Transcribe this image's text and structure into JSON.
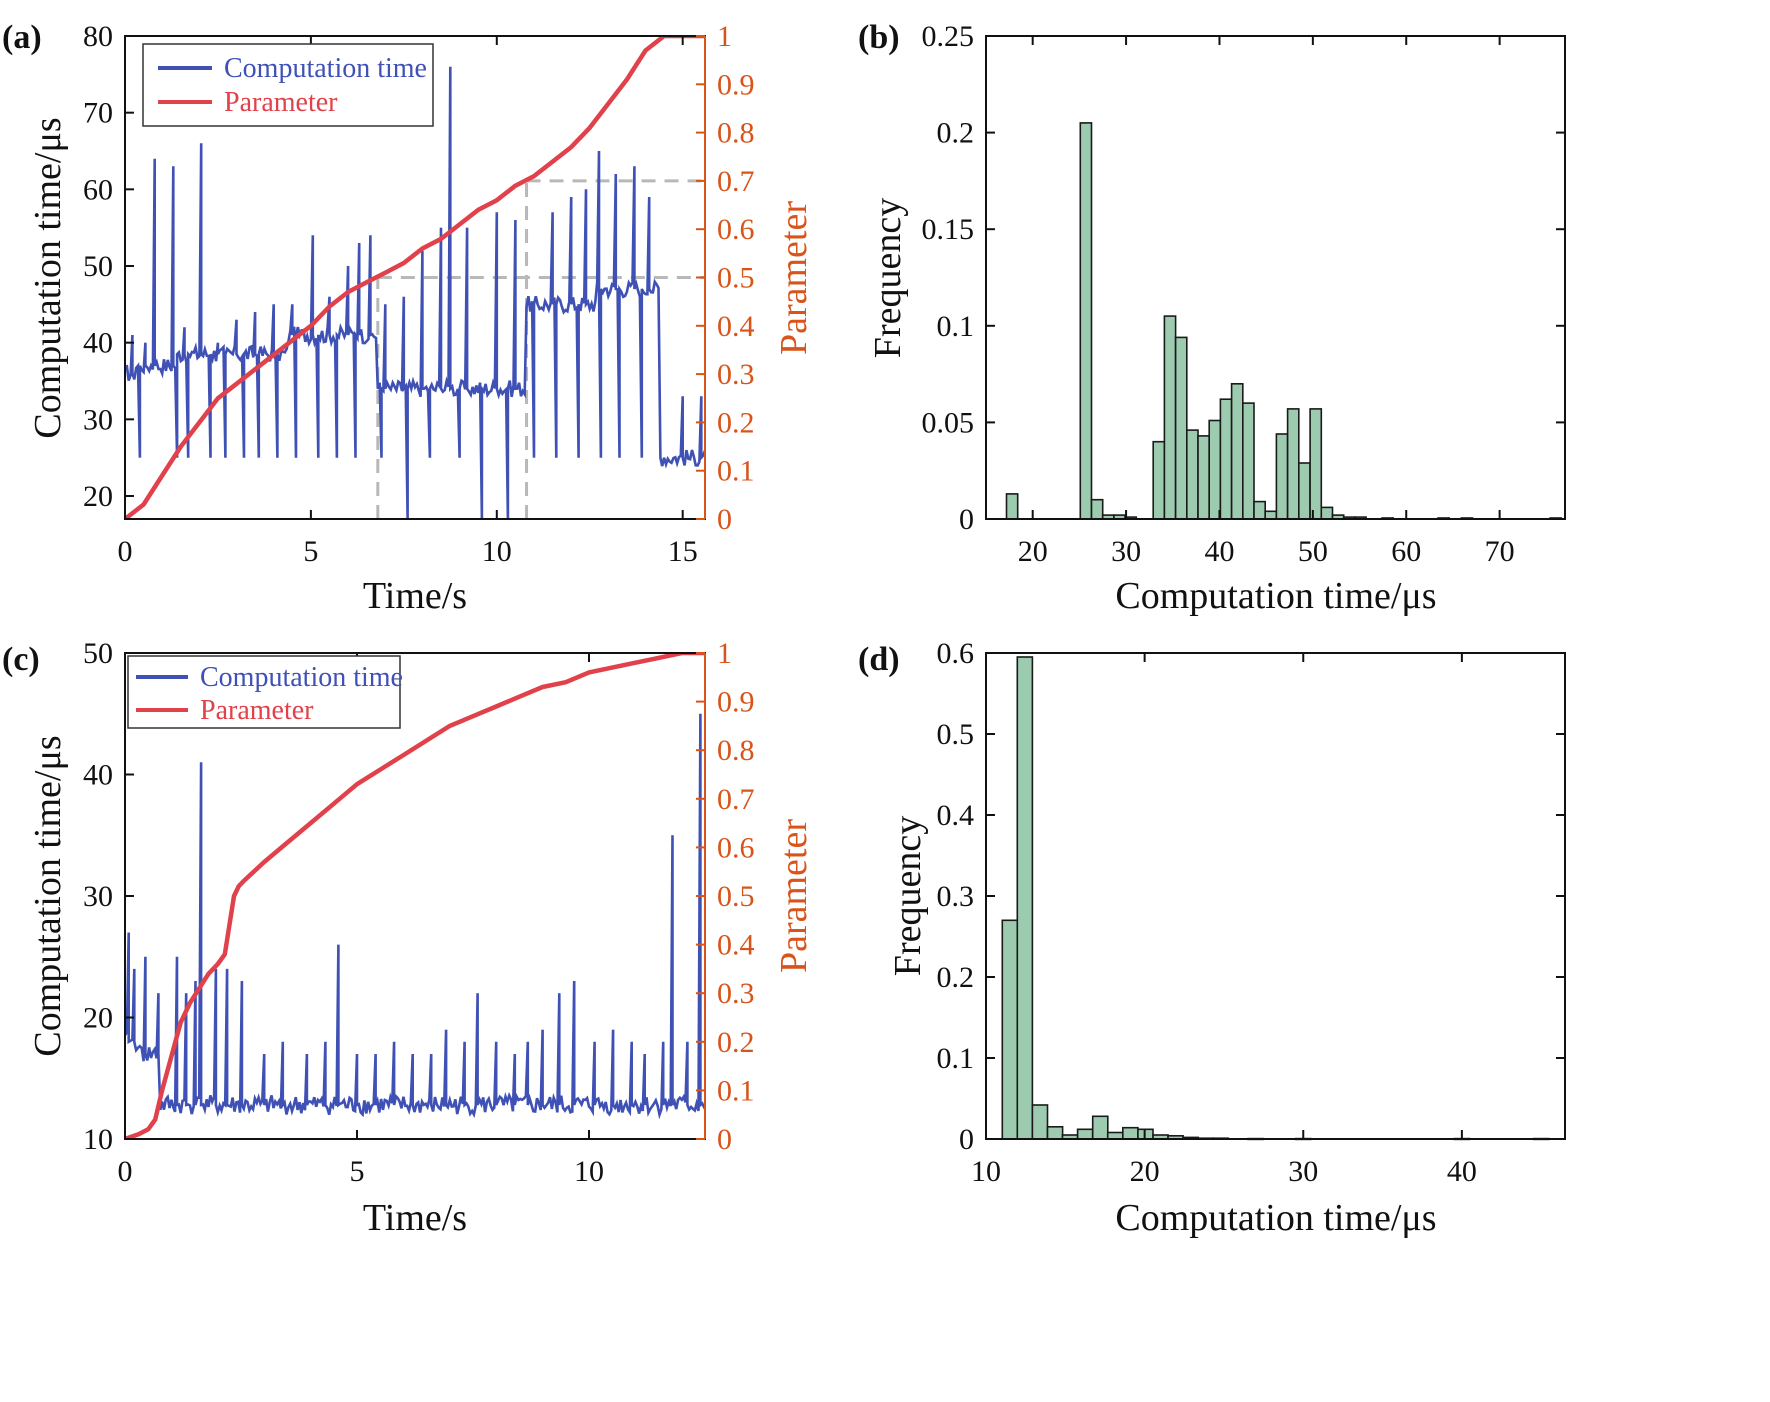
{
  "colors": {
    "computation": "#3F51B5",
    "parameter": "#E0414B",
    "right_axis": "#D9541A",
    "hist_fill": "#9CCBB0",
    "hist_edge": "#1a1a1a",
    "guide": "#B8B8B8"
  },
  "chart_data": [
    {
      "panel": "(a)",
      "type": "line",
      "xlabel": "Time/s",
      "ylabel": "Computation time/μs",
      "y2label": "Parameter",
      "xlim": [
        0,
        15.6
      ],
      "ylim": [
        17,
        80
      ],
      "y2lim": [
        0,
        1
      ],
      "xticks": [
        0,
        5,
        10,
        15
      ],
      "yticks": [
        20,
        30,
        40,
        50,
        60,
        70,
        80
      ],
      "y2ticks": [
        0,
        0.1,
        0.2,
        0.3,
        0.4,
        0.5,
        0.6,
        0.7,
        0.8,
        0.9,
        1
      ],
      "y2ticklabels": [
        "0",
        "0.1",
        "0.2",
        "0.3",
        "0.4",
        "0.5",
        "0.6",
        "0.7",
        "0.8",
        "0.9",
        "1"
      ],
      "legend": [
        "Computation time",
        "Parameter"
      ],
      "legend_position": "top-left",
      "computation_segments": [
        {
          "x": [
            0,
            0.3
          ],
          "base": 36
        },
        {
          "x": [
            0.3,
            1.4
          ],
          "base": 37
        },
        {
          "x": [
            1.4,
            4.4
          ],
          "base": 38.5
        },
        {
          "x": [
            4.4,
            6.8
          ],
          "base": 41
        },
        {
          "x": [
            6.8,
            10.8
          ],
          "base": 34
        },
        {
          "x": [
            10.8,
            12.7
          ],
          "base": 45
        },
        {
          "x": [
            12.7,
            14.4
          ],
          "base": 47
        },
        {
          "x": [
            14.4,
            15.6
          ],
          "base": 25
        }
      ],
      "computation_spikes": [
        {
          "t": 0.2,
          "v": 41
        },
        {
          "t": 0.55,
          "v": 40
        },
        {
          "t": 0.8,
          "v": 64
        },
        {
          "t": 1.3,
          "v": 63
        },
        {
          "t": 1.6,
          "v": 42
        },
        {
          "t": 2.05,
          "v": 66
        },
        {
          "t": 2.5,
          "v": 40
        },
        {
          "t": 3.0,
          "v": 43
        },
        {
          "t": 3.5,
          "v": 44
        },
        {
          "t": 4.0,
          "v": 45
        },
        {
          "t": 4.5,
          "v": 45
        },
        {
          "t": 5.05,
          "v": 54
        },
        {
          "t": 5.5,
          "v": 46
        },
        {
          "t": 6.0,
          "v": 50
        },
        {
          "t": 6.3,
          "v": 53
        },
        {
          "t": 6.6,
          "v": 54
        },
        {
          "t": 7.0,
          "v": 45
        },
        {
          "t": 7.5,
          "v": 46
        },
        {
          "t": 8.0,
          "v": 52
        },
        {
          "t": 8.5,
          "v": 55
        },
        {
          "t": 8.75,
          "v": 76
        },
        {
          "t": 9.2,
          "v": 55
        },
        {
          "t": 9.6,
          "v": 56
        },
        {
          "t": 10.0,
          "v": 57
        },
        {
          "t": 10.5,
          "v": 56
        },
        {
          "t": 11.0,
          "v": 56
        },
        {
          "t": 11.5,
          "v": 57
        },
        {
          "t": 12.0,
          "v": 59
        },
        {
          "t": 12.4,
          "v": 60
        },
        {
          "t": 12.75,
          "v": 65
        },
        {
          "t": 13.2,
          "v": 62
        },
        {
          "t": 13.7,
          "v": 63
        },
        {
          "t": 14.1,
          "v": 59
        },
        {
          "t": 14.5,
          "v": 50
        },
        {
          "t": 15.0,
          "v": 33
        },
        {
          "t": 15.5,
          "v": 33
        }
      ],
      "computation_dips": [
        {
          "t": 0.4,
          "v": 25
        },
        {
          "t": 1.4,
          "v": 25
        },
        {
          "t": 1.7,
          "v": 25
        },
        {
          "t": 2.3,
          "v": 25
        },
        {
          "t": 2.7,
          "v": 25
        },
        {
          "t": 3.2,
          "v": 25
        },
        {
          "t": 3.6,
          "v": 25
        },
        {
          "t": 4.1,
          "v": 25
        },
        {
          "t": 4.6,
          "v": 25
        },
        {
          "t": 5.2,
          "v": 25
        },
        {
          "t": 5.7,
          "v": 25
        },
        {
          "t": 6.2,
          "v": 25
        },
        {
          "t": 6.9,
          "v": 25
        },
        {
          "t": 7.6,
          "v": 17
        },
        {
          "t": 8.2,
          "v": 25
        },
        {
          "t": 9.0,
          "v": 25
        },
        {
          "t": 9.6,
          "v": 17
        },
        {
          "t": 10.3,
          "v": 17
        },
        {
          "t": 11.0,
          "v": 25
        },
        {
          "t": 11.6,
          "v": 25
        },
        {
          "t": 12.2,
          "v": 25
        },
        {
          "t": 12.8,
          "v": 25
        },
        {
          "t": 13.3,
          "v": 25
        },
        {
          "t": 13.9,
          "v": 25
        },
        {
          "t": 14.5,
          "v": 25
        }
      ],
      "parameter": {
        "x": [
          0,
          0.5,
          1.0,
          1.5,
          2.0,
          2.5,
          3.0,
          3.5,
          4.0,
          4.5,
          5.0,
          5.5,
          6.0,
          6.5,
          7.0,
          7.5,
          8.0,
          8.5,
          9.0,
          9.5,
          10.0,
          10.5,
          11.0,
          11.5,
          12.0,
          12.5,
          13.0,
          13.5,
          14.0,
          14.5,
          15.0,
          15.6
        ],
        "y": [
          0,
          0.03,
          0.09,
          0.15,
          0.2,
          0.25,
          0.28,
          0.31,
          0.34,
          0.37,
          0.4,
          0.44,
          0.47,
          0.49,
          0.51,
          0.53,
          0.56,
          0.58,
          0.61,
          0.64,
          0.66,
          0.69,
          0.71,
          0.74,
          0.77,
          0.81,
          0.86,
          0.91,
          0.97,
          1.0,
          1.0,
          1.0
        ]
      },
      "guides": [
        {
          "x": [
            6.8,
            6.8
          ],
          "y2": [
            0,
            0.5
          ]
        },
        {
          "x": [
            6.8,
            15.6
          ],
          "y2": [
            0.5,
            0.5
          ]
        },
        {
          "x": [
            10.8,
            10.8
          ],
          "y2": [
            0,
            0.7
          ]
        },
        {
          "x": [
            10.8,
            15.6
          ],
          "y2": [
            0.7,
            0.7
          ]
        }
      ]
    },
    {
      "panel": "(b)",
      "type": "bar",
      "xlabel": "Computation time/μs",
      "ylabel": "Frequency",
      "xlim": [
        15,
        77
      ],
      "ylim": [
        0,
        0.25
      ],
      "xticks": [
        20,
        30,
        40,
        50,
        60,
        70
      ],
      "yticks": [
        0,
        0.05,
        0.1,
        0.15,
        0.2,
        0.25
      ],
      "yticklabels": [
        "0",
        "0.05",
        "0.1",
        "0.15",
        "0.2",
        "0.25"
      ],
      "bin_width": 1.2,
      "bins": [
        {
          "x": 17.8,
          "f": 0.013
        },
        {
          "x": 25.7,
          "f": 0.205
        },
        {
          "x": 26.9,
          "f": 0.01
        },
        {
          "x": 28.1,
          "f": 0.002
        },
        {
          "x": 29.3,
          "f": 0.002
        },
        {
          "x": 30.5,
          "f": 0.001
        },
        {
          "x": 33.5,
          "f": 0.04
        },
        {
          "x": 34.7,
          "f": 0.105
        },
        {
          "x": 35.9,
          "f": 0.094
        },
        {
          "x": 37.1,
          "f": 0.046
        },
        {
          "x": 38.3,
          "f": 0.043
        },
        {
          "x": 39.5,
          "f": 0.051
        },
        {
          "x": 40.7,
          "f": 0.062
        },
        {
          "x": 41.9,
          "f": 0.07
        },
        {
          "x": 43.1,
          "f": 0.06
        },
        {
          "x": 44.3,
          "f": 0.009
        },
        {
          "x": 45.5,
          "f": 0.004
        },
        {
          "x": 46.7,
          "f": 0.044
        },
        {
          "x": 47.9,
          "f": 0.057
        },
        {
          "x": 49.1,
          "f": 0.029
        },
        {
          "x": 50.3,
          "f": 0.057
        },
        {
          "x": 51.5,
          "f": 0.006
        },
        {
          "x": 52.7,
          "f": 0.002
        },
        {
          "x": 53.9,
          "f": 0.001
        },
        {
          "x": 55.1,
          "f": 0.001
        },
        {
          "x": 58.0,
          "f": 0.0005
        },
        {
          "x": 64.0,
          "f": 0.0005
        },
        {
          "x": 66.5,
          "f": 0.0005
        },
        {
          "x": 76.0,
          "f": 0.0005
        }
      ]
    },
    {
      "panel": "(c)",
      "type": "line",
      "xlabel": "Time/s",
      "ylabel": "Computation time/μs",
      "y2label": "Parameter",
      "xlim": [
        0,
        12.5
      ],
      "ylim": [
        10,
        50
      ],
      "y2lim": [
        0,
        1
      ],
      "xticks": [
        0,
        5,
        10
      ],
      "yticks": [
        10,
        20,
        30,
        40,
        50
      ],
      "y2ticks": [
        0,
        0.1,
        0.2,
        0.3,
        0.4,
        0.5,
        0.6,
        0.7,
        0.8,
        0.9,
        1
      ],
      "y2ticklabels": [
        "0",
        "0.1",
        "0.2",
        "0.3",
        "0.4",
        "0.5",
        "0.6",
        "0.7",
        "0.8",
        "0.9",
        "1"
      ],
      "legend": [
        "Computation time",
        "Parameter"
      ],
      "legend_position": "top-left",
      "computation_base": [
        {
          "x": [
            0,
            0.3
          ],
          "base": 18
        },
        {
          "x": [
            0.3,
            0.75
          ],
          "base": 17
        },
        {
          "x": [
            0.75,
            12.5
          ],
          "base": 12.8
        }
      ],
      "computation_spikes": [
        {
          "t": 0.08,
          "v": 27
        },
        {
          "t": 0.2,
          "v": 24
        },
        {
          "t": 0.45,
          "v": 25
        },
        {
          "t": 0.7,
          "v": 22
        },
        {
          "t": 1.1,
          "v": 25
        },
        {
          "t": 1.3,
          "v": 22
        },
        {
          "t": 1.5,
          "v": 23
        },
        {
          "t": 1.65,
          "v": 41
        },
        {
          "t": 1.95,
          "v": 24
        },
        {
          "t": 2.2,
          "v": 24
        },
        {
          "t": 2.5,
          "v": 23
        },
        {
          "t": 3.0,
          "v": 17
        },
        {
          "t": 3.4,
          "v": 18
        },
        {
          "t": 3.9,
          "v": 17
        },
        {
          "t": 4.3,
          "v": 18
        },
        {
          "t": 4.6,
          "v": 26
        },
        {
          "t": 5.0,
          "v": 17
        },
        {
          "t": 5.4,
          "v": 17
        },
        {
          "t": 5.8,
          "v": 18
        },
        {
          "t": 6.2,
          "v": 17
        },
        {
          "t": 6.6,
          "v": 17
        },
        {
          "t": 6.9,
          "v": 19
        },
        {
          "t": 7.3,
          "v": 18
        },
        {
          "t": 7.6,
          "v": 22
        },
        {
          "t": 8.0,
          "v": 18
        },
        {
          "t": 8.4,
          "v": 17
        },
        {
          "t": 8.7,
          "v": 18
        },
        {
          "t": 9.0,
          "v": 19
        },
        {
          "t": 9.35,
          "v": 22
        },
        {
          "t": 9.7,
          "v": 23
        },
        {
          "t": 10.1,
          "v": 18
        },
        {
          "t": 10.5,
          "v": 19
        },
        {
          "t": 10.9,
          "v": 18
        },
        {
          "t": 11.2,
          "v": 17
        },
        {
          "t": 11.6,
          "v": 18
        },
        {
          "t": 11.8,
          "v": 35
        },
        {
          "t": 12.1,
          "v": 18
        },
        {
          "t": 12.4,
          "v": 45
        }
      ],
      "parameter": {
        "x": [
          0,
          0.3,
          0.5,
          0.65,
          0.8,
          1.0,
          1.2,
          1.4,
          1.6,
          1.8,
          2.0,
          2.15,
          2.25,
          2.35,
          2.45,
          2.55,
          3.0,
          3.5,
          4.0,
          4.5,
          5.0,
          5.5,
          6.0,
          6.5,
          7.0,
          7.5,
          8.0,
          8.5,
          9.0,
          9.5,
          10.0,
          10.5,
          11.0,
          11.5,
          12.0,
          12.5
        ],
        "y": [
          0,
          0.01,
          0.02,
          0.04,
          0.1,
          0.17,
          0.24,
          0.28,
          0.31,
          0.34,
          0.36,
          0.38,
          0.44,
          0.5,
          0.52,
          0.53,
          0.57,
          0.61,
          0.65,
          0.69,
          0.73,
          0.76,
          0.79,
          0.82,
          0.85,
          0.87,
          0.89,
          0.91,
          0.93,
          0.94,
          0.96,
          0.97,
          0.98,
          0.99,
          1.0,
          1.0
        ]
      }
    },
    {
      "panel": "(d)",
      "type": "bar",
      "xlabel": "Computation time/μs",
      "ylabel": "Frequency",
      "xlim": [
        10,
        46.5
      ],
      "ylim": [
        0,
        0.6
      ],
      "xticks": [
        10,
        20,
        30,
        40
      ],
      "yticks": [
        0,
        0.1,
        0.2,
        0.3,
        0.4,
        0.5,
        0.6
      ],
      "yticklabels": [
        "0",
        "0.1",
        "0.2",
        "0.3",
        "0.4",
        "0.5",
        "0.6"
      ],
      "bin_width": 0.95,
      "bins": [
        {
          "x": 11.5,
          "f": 0.27
        },
        {
          "x": 12.45,
          "f": 0.595
        },
        {
          "x": 13.4,
          "f": 0.042
        },
        {
          "x": 14.35,
          "f": 0.015
        },
        {
          "x": 15.3,
          "f": 0.005
        },
        {
          "x": 16.25,
          "f": 0.012
        },
        {
          "x": 17.2,
          "f": 0.028
        },
        {
          "x": 18.15,
          "f": 0.008
        },
        {
          "x": 19.1,
          "f": 0.014
        },
        {
          "x": 20.05,
          "f": 0.012
        },
        {
          "x": 21.0,
          "f": 0.005
        },
        {
          "x": 21.95,
          "f": 0.004
        },
        {
          "x": 22.9,
          "f": 0.002
        },
        {
          "x": 23.85,
          "f": 0.001
        },
        {
          "x": 24.8,
          "f": 0.001
        },
        {
          "x": 27.0,
          "f": 0.0005
        },
        {
          "x": 30.0,
          "f": 0.0005
        },
        {
          "x": 40.0,
          "f": 0.0005
        },
        {
          "x": 45.0,
          "f": 0.0005
        }
      ]
    }
  ]
}
